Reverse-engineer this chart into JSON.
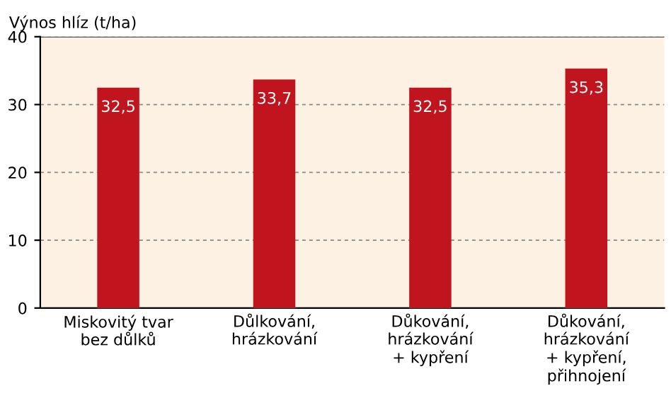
{
  "chart_data": {
    "type": "bar",
    "ylabel": "Výnos hlíz (t/ha)",
    "categories": [
      "Miskovitý tvar\nbez důlků",
      "Důlkování,\nhrázkování",
      "Důkování,\nhrázkování\n+ kypření",
      "Důkování,\nhrázkování\n+ kypření,\npřihnojení"
    ],
    "values": [
      32.5,
      33.7,
      32.5,
      35.3
    ],
    "value_labels": [
      "32,5",
      "33,7",
      "32,5",
      "35,3"
    ],
    "color": "#c0141e",
    "ylim": [
      0,
      40
    ],
    "yticks": [
      0,
      10,
      20,
      30,
      40
    ],
    "grid": "y"
  }
}
